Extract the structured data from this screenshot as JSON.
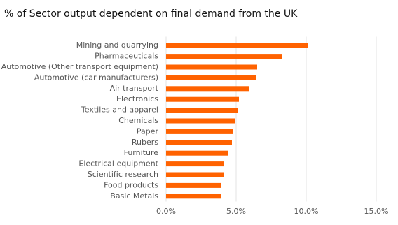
{
  "chart_data": {
    "type": "barh",
    "title": "% of Sector output dependent on final demand from the UK",
    "categories": [
      "Mining and quarrying",
      "Pharmaceuticals",
      "Automotive (Other transport equipment)",
      "Automotive (car manufacturers)",
      "Air transport",
      "Electronics",
      "Textiles and apparel",
      "Chemicals",
      "Paper",
      "Rubers",
      "Furniture",
      "Electrical equipment",
      "Scientific research",
      "Food products",
      "Basic Metals"
    ],
    "values": [
      10.1,
      8.3,
      6.5,
      6.4,
      5.9,
      5.2,
      5.1,
      4.9,
      4.8,
      4.7,
      4.4,
      4.1,
      4.1,
      3.9,
      3.9
    ],
    "color": "#ff6200",
    "xlim": [
      0,
      15
    ],
    "xticks": [
      {
        "value": 0,
        "label": "0.0%"
      },
      {
        "value": 5,
        "label": "5.0%"
      },
      {
        "value": 10,
        "label": "10.0%"
      },
      {
        "value": 15,
        "label": "15.0%"
      }
    ],
    "grid": true
  }
}
